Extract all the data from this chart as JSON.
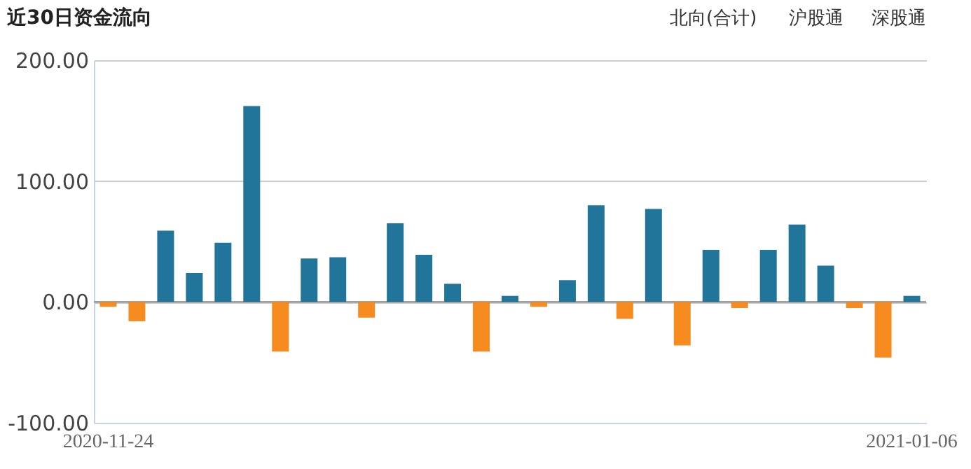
{
  "chart_data": {
    "type": "bar",
    "title": "近30日资金流向",
    "categories": [
      "2020-11-24",
      null,
      null,
      null,
      null,
      null,
      null,
      null,
      null,
      null,
      null,
      null,
      null,
      null,
      null,
      null,
      null,
      null,
      null,
      null,
      null,
      null,
      null,
      null,
      null,
      null,
      null,
      null,
      "2021-01-06"
    ],
    "values": [
      -4,
      -16,
      59,
      24,
      49,
      162,
      -41,
      36,
      37,
      -13,
      65,
      39,
      15,
      -41,
      5,
      -4,
      18,
      80,
      -14,
      77,
      -36,
      43,
      -5,
      43,
      64,
      30,
      -5,
      -46,
      5
    ],
    "colors": [
      "#f68b1f",
      "#f68b1f",
      "#21759b",
      "#21759b",
      "#21759b",
      "#21759b",
      "#f68b1f",
      "#21759b",
      "#21759b",
      "#f68b1f",
      "#21759b",
      "#21759b",
      "#21759b",
      "#f68b1f",
      "#21759b",
      "#f68b1f",
      "#21759b",
      "#21759b",
      "#f68b1f",
      "#21759b",
      "#f68b1f",
      "#21759b",
      "#f68b1f",
      "#21759b",
      "#21759b",
      "#21759b",
      "#f68b1f",
      "#f68b1f",
      "#21759b"
    ],
    "ylim": [
      -100,
      200
    ],
    "yticks": [
      {
        "value": -100,
        "label": "-100.00"
      },
      {
        "value": 0,
        "label": "0.00"
      },
      {
        "value": 100,
        "label": "100.00"
      },
      {
        "value": 200,
        "label": "200.00"
      }
    ],
    "grid": "y",
    "annotations": [
      "北向(合计)",
      "沪股通",
      "深股通"
    ]
  }
}
